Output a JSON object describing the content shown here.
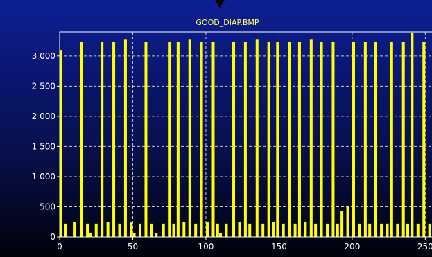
{
  "chart_data": {
    "type": "bar",
    "title": "GOOD_DIAP.BMP",
    "xlabel": "",
    "ylabel": "",
    "xlim": [
      0,
      256
    ],
    "ylim": [
      0,
      3400
    ],
    "grid": true,
    "colors": {
      "bars": "#ffff00",
      "frame": "#ffffff",
      "grid": "#c8c8c8",
      "title": "#ffff66",
      "ticks": "#ffffff"
    },
    "x_ticks": [
      0,
      50,
      100,
      150,
      200,
      250
    ],
    "x_tick_labels": [
      "0",
      "50",
      "100",
      "150",
      "200",
      "250"
    ],
    "y_ticks": [
      0,
      500,
      1000,
      1500,
      2000,
      2500,
      3000
    ],
    "y_tick_labels": [
      "0",
      "500",
      "1 000",
      "1 500",
      "2 000",
      "2 500",
      "3 000"
    ],
    "x": [
      0,
      4,
      10,
      15,
      19,
      21,
      25,
      29,
      33,
      37,
      41,
      45,
      49,
      51,
      55,
      59,
      63,
      66,
      71,
      75,
      78,
      81,
      85,
      89,
      93,
      97,
      101,
      105,
      108,
      110,
      114,
      119,
      123,
      127,
      130,
      135,
      139,
      143,
      146,
      149,
      153,
      157,
      161,
      164,
      168,
      172,
      175,
      179,
      183,
      187,
      190,
      193,
      197,
      201,
      205,
      209,
      212,
      216,
      220,
      224,
      227,
      231,
      235,
      238,
      241,
      245,
      249,
      253
    ],
    "values": [
      3100,
      220,
      250,
      3230,
      220,
      70,
      220,
      3230,
      250,
      3230,
      220,
      3270,
      240,
      60,
      220,
      3230,
      220,
      60,
      220,
      3230,
      220,
      3230,
      250,
      3270,
      220,
      3230,
      250,
      3230,
      220,
      60,
      220,
      3230,
      250,
      3230,
      220,
      3270,
      220,
      3230,
      250,
      3230,
      220,
      3230,
      220,
      3230,
      250,
      3270,
      220,
      3230,
      220,
      3230,
      220,
      430,
      510,
      3230,
      220,
      3230,
      220,
      3230,
      220,
      220,
      3230,
      220,
      3230,
      220,
      3390,
      220,
      3230,
      220
    ]
  }
}
